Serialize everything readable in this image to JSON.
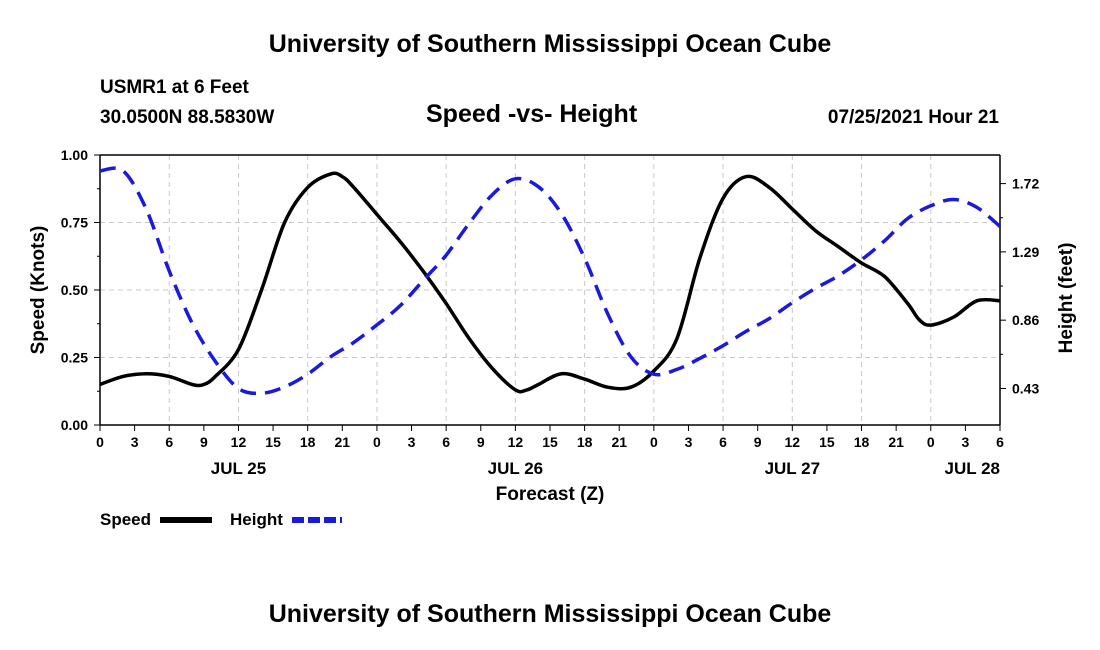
{
  "header": {
    "title": "University of Southern Mississippi Ocean Cube",
    "station": "USMR1 at 6 Feet",
    "coords": "30.0500N  88.5830W",
    "datetime": "07/25/2021 Hour 21"
  },
  "footer": {
    "title": "University of Southern Mississippi Ocean Cube"
  },
  "chart_data": {
    "type": "line",
    "title": "Speed -vs- Height",
    "xlabel": "Forecast (Z)",
    "ylabel_left": "Speed (Knots)",
    "ylabel_right": "Height (feet)",
    "x_range_hours": [
      0,
      78
    ],
    "y_left_range": [
      0,
      1.0
    ],
    "y_right_range": [
      0.2,
      1.9
    ],
    "y_left_ticks": [
      "0.00",
      "0.25",
      "0.50",
      "0.75",
      "1.00"
    ],
    "y_left_tick_values": [
      0,
      0.25,
      0.5,
      0.75,
      1.0
    ],
    "y_right_ticks": [
      "0.43",
      "0.86",
      "1.29",
      "1.72"
    ],
    "y_right_tick_values": [
      0.43,
      0.86,
      1.29,
      1.72
    ],
    "x_tick_labels": [
      "0",
      "3",
      "6",
      "9",
      "12",
      "15",
      "18",
      "21",
      "0",
      "3",
      "6",
      "9",
      "12",
      "15",
      "18",
      "21",
      "0",
      "3",
      "6",
      "9",
      "12",
      "15",
      "18",
      "21",
      "0",
      "3",
      "6"
    ],
    "date_labels": [
      {
        "label": "JUL 25",
        "hour": 12
      },
      {
        "label": "JUL 26",
        "hour": 36
      },
      {
        "label": "JUL 27",
        "hour": 60
      },
      {
        "label": "JUL 28",
        "hour": 78
      }
    ],
    "legend": [
      {
        "name": "Speed",
        "color": "#000000",
        "dash": "solid"
      },
      {
        "name": "Height",
        "color": "#1a1adc",
        "dash": "dashed"
      }
    ],
    "series": [
      {
        "name": "Speed",
        "axis": "left",
        "color": "#000000",
        "x": [
          0,
          2,
          4,
          6,
          8,
          9,
          10,
          12,
          14,
          16,
          18,
          20,
          21,
          22,
          24,
          26,
          28,
          30,
          32,
          34,
          36,
          37,
          38,
          40,
          42,
          44,
          46,
          48,
          50,
          52,
          54,
          56,
          58,
          60,
          62,
          64,
          66,
          68,
          70,
          71,
          72,
          74,
          76,
          78
        ],
        "y": [
          0.15,
          0.18,
          0.19,
          0.18,
          0.15,
          0.15,
          0.18,
          0.28,
          0.5,
          0.75,
          0.88,
          0.93,
          0.92,
          0.88,
          0.78,
          0.68,
          0.57,
          0.45,
          0.32,
          0.21,
          0.13,
          0.13,
          0.15,
          0.19,
          0.17,
          0.14,
          0.14,
          0.2,
          0.32,
          0.62,
          0.84,
          0.92,
          0.88,
          0.8,
          0.72,
          0.66,
          0.6,
          0.55,
          0.45,
          0.39,
          0.37,
          0.4,
          0.46,
          0.46
        ]
      },
      {
        "name": "Height",
        "axis": "right",
        "color": "#1a1adc",
        "x": [
          0,
          2,
          4,
          6,
          8,
          10,
          12,
          14,
          16,
          18,
          20,
          22,
          24,
          26,
          28,
          30,
          32,
          34,
          36,
          38,
          40,
          42,
          44,
          46,
          48,
          50,
          52,
          54,
          56,
          58,
          60,
          62,
          64,
          66,
          68,
          70,
          72,
          74,
          76,
          78
        ],
        "y": [
          1.8,
          1.8,
          1.56,
          1.17,
          0.84,
          0.6,
          0.43,
          0.4,
          0.44,
          0.52,
          0.63,
          0.72,
          0.83,
          0.95,
          1.11,
          1.27,
          1.47,
          1.65,
          1.75,
          1.7,
          1.53,
          1.25,
          0.9,
          0.63,
          0.52,
          0.55,
          0.62,
          0.7,
          0.79,
          0.87,
          0.97,
          1.06,
          1.14,
          1.24,
          1.36,
          1.5,
          1.58,
          1.62,
          1.57,
          1.45
        ]
      }
    ]
  }
}
